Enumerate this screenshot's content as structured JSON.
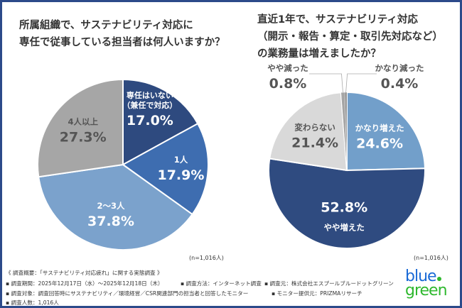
{
  "colors": {
    "border": "#2c4a8a"
  },
  "chart_data": [
    {
      "type": "pie",
      "title": "所属組織で、サステナビリティ対応に\n専任で従事している担当者は何人いますか？",
      "categories": [
        "専任はいない（兼任で対応）",
        "1人",
        "2〜3人",
        "4人以上"
      ],
      "values": [
        17.0,
        17.9,
        37.8,
        27.3
      ],
      "labels": [
        "17.0%",
        "17.9%",
        "37.8%",
        "27.3%"
      ],
      "colors": [
        "#2e4a7f",
        "#3e6db0",
        "#7ba2cc",
        "#a6a6a6"
      ],
      "note": "(n=1,016人)"
    },
    {
      "type": "pie",
      "title": "直近1年で、サステナビリティ対応\n（開示・報告・算定・取引先対応など）\nの業務量は増えましたか？",
      "categories": [
        "かなり増えた",
        "やや増えた",
        "変わらない",
        "やや減った",
        "かなり減った"
      ],
      "values": [
        24.6,
        52.8,
        21.4,
        0.8,
        0.4
      ],
      "labels": [
        "24.6%",
        "52.8%",
        "21.4%",
        "0.8%",
        "0.4%"
      ],
      "colors": [
        "#729fca",
        "#2f4b80",
        "#d9d9d9",
        "#a6a6a6",
        "#7f7f7f"
      ],
      "note": "(n=1,016人)"
    }
  ],
  "footer": {
    "overview": "《 調査概要：「サステナビリティ対応疲れ」に関する実態調査 》",
    "period": "▪ 調査期間：2025年12月17日（水）〜2025年12月18日（木）",
    "method": "▪ 調査方法：インターネット調査",
    "org": "▪ 調査元：株式会社エスプールブルードットグリーン",
    "target": "▪ 調査対象：調査回答時にサステナビリティ／環境経営／CSR関連部門の担当者と回答したモニター",
    "provider": "▪ モニター提供元：PRIZMAリサーチ",
    "count": "▪ 調査人数：1,016人"
  },
  "logo": {
    "line1": "blue",
    "line2": "green"
  }
}
